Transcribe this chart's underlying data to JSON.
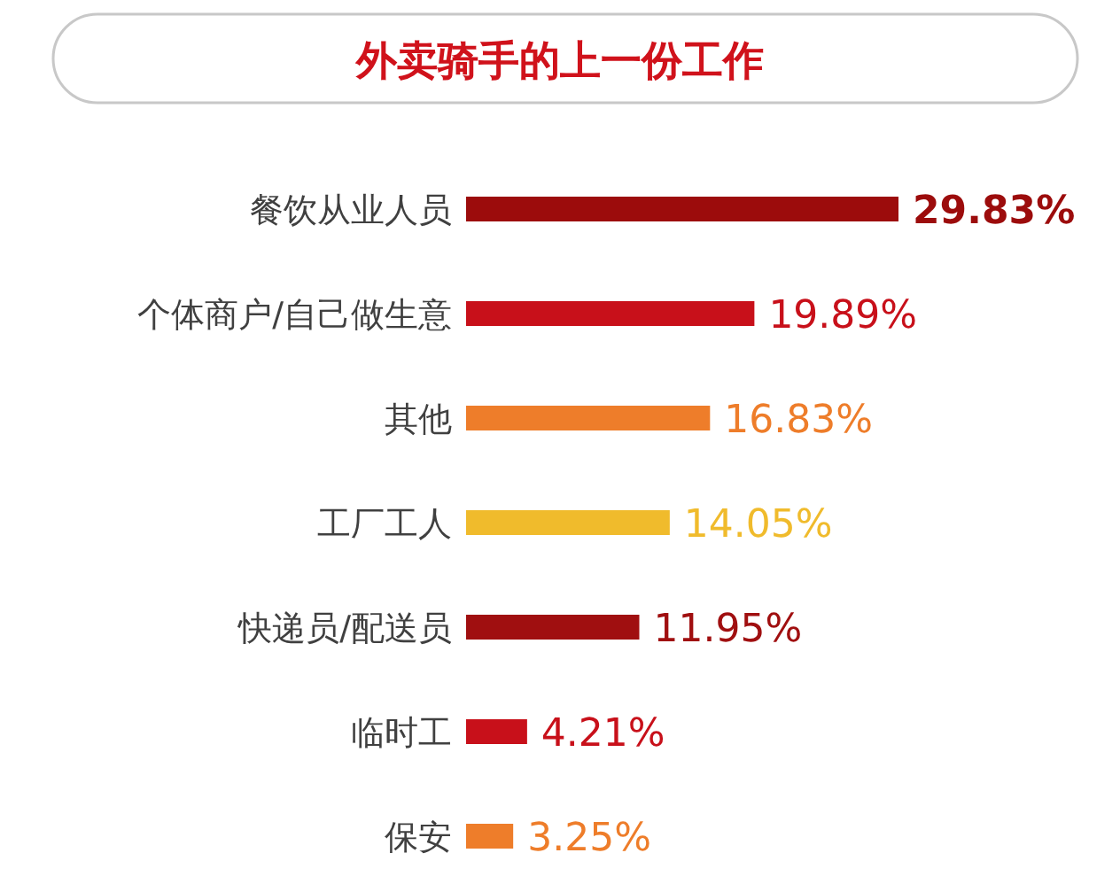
{
  "chart_data": {
    "type": "bar",
    "orientation": "horizontal",
    "title": "外卖骑手的上一份工作",
    "categories": [
      "餐饮从业人员",
      "个体商户/自己做生意",
      "其他",
      "工厂工人",
      "快递员/配送员",
      "临时工",
      "保安"
    ],
    "values": [
      29.83,
      19.89,
      16.83,
      14.05,
      11.95,
      4.21,
      3.25
    ],
    "colors": [
      "#9c0c0c",
      "#c8101a",
      "#ee7d2a",
      "#f0bb2c",
      "#a00f10",
      "#c8101a",
      "#ee7d2a"
    ],
    "value_labels": [
      "29.83%",
      "19.89%",
      "16.83%",
      "14.05%",
      "11.95%",
      "4.21%",
      "3.25%"
    ]
  }
}
